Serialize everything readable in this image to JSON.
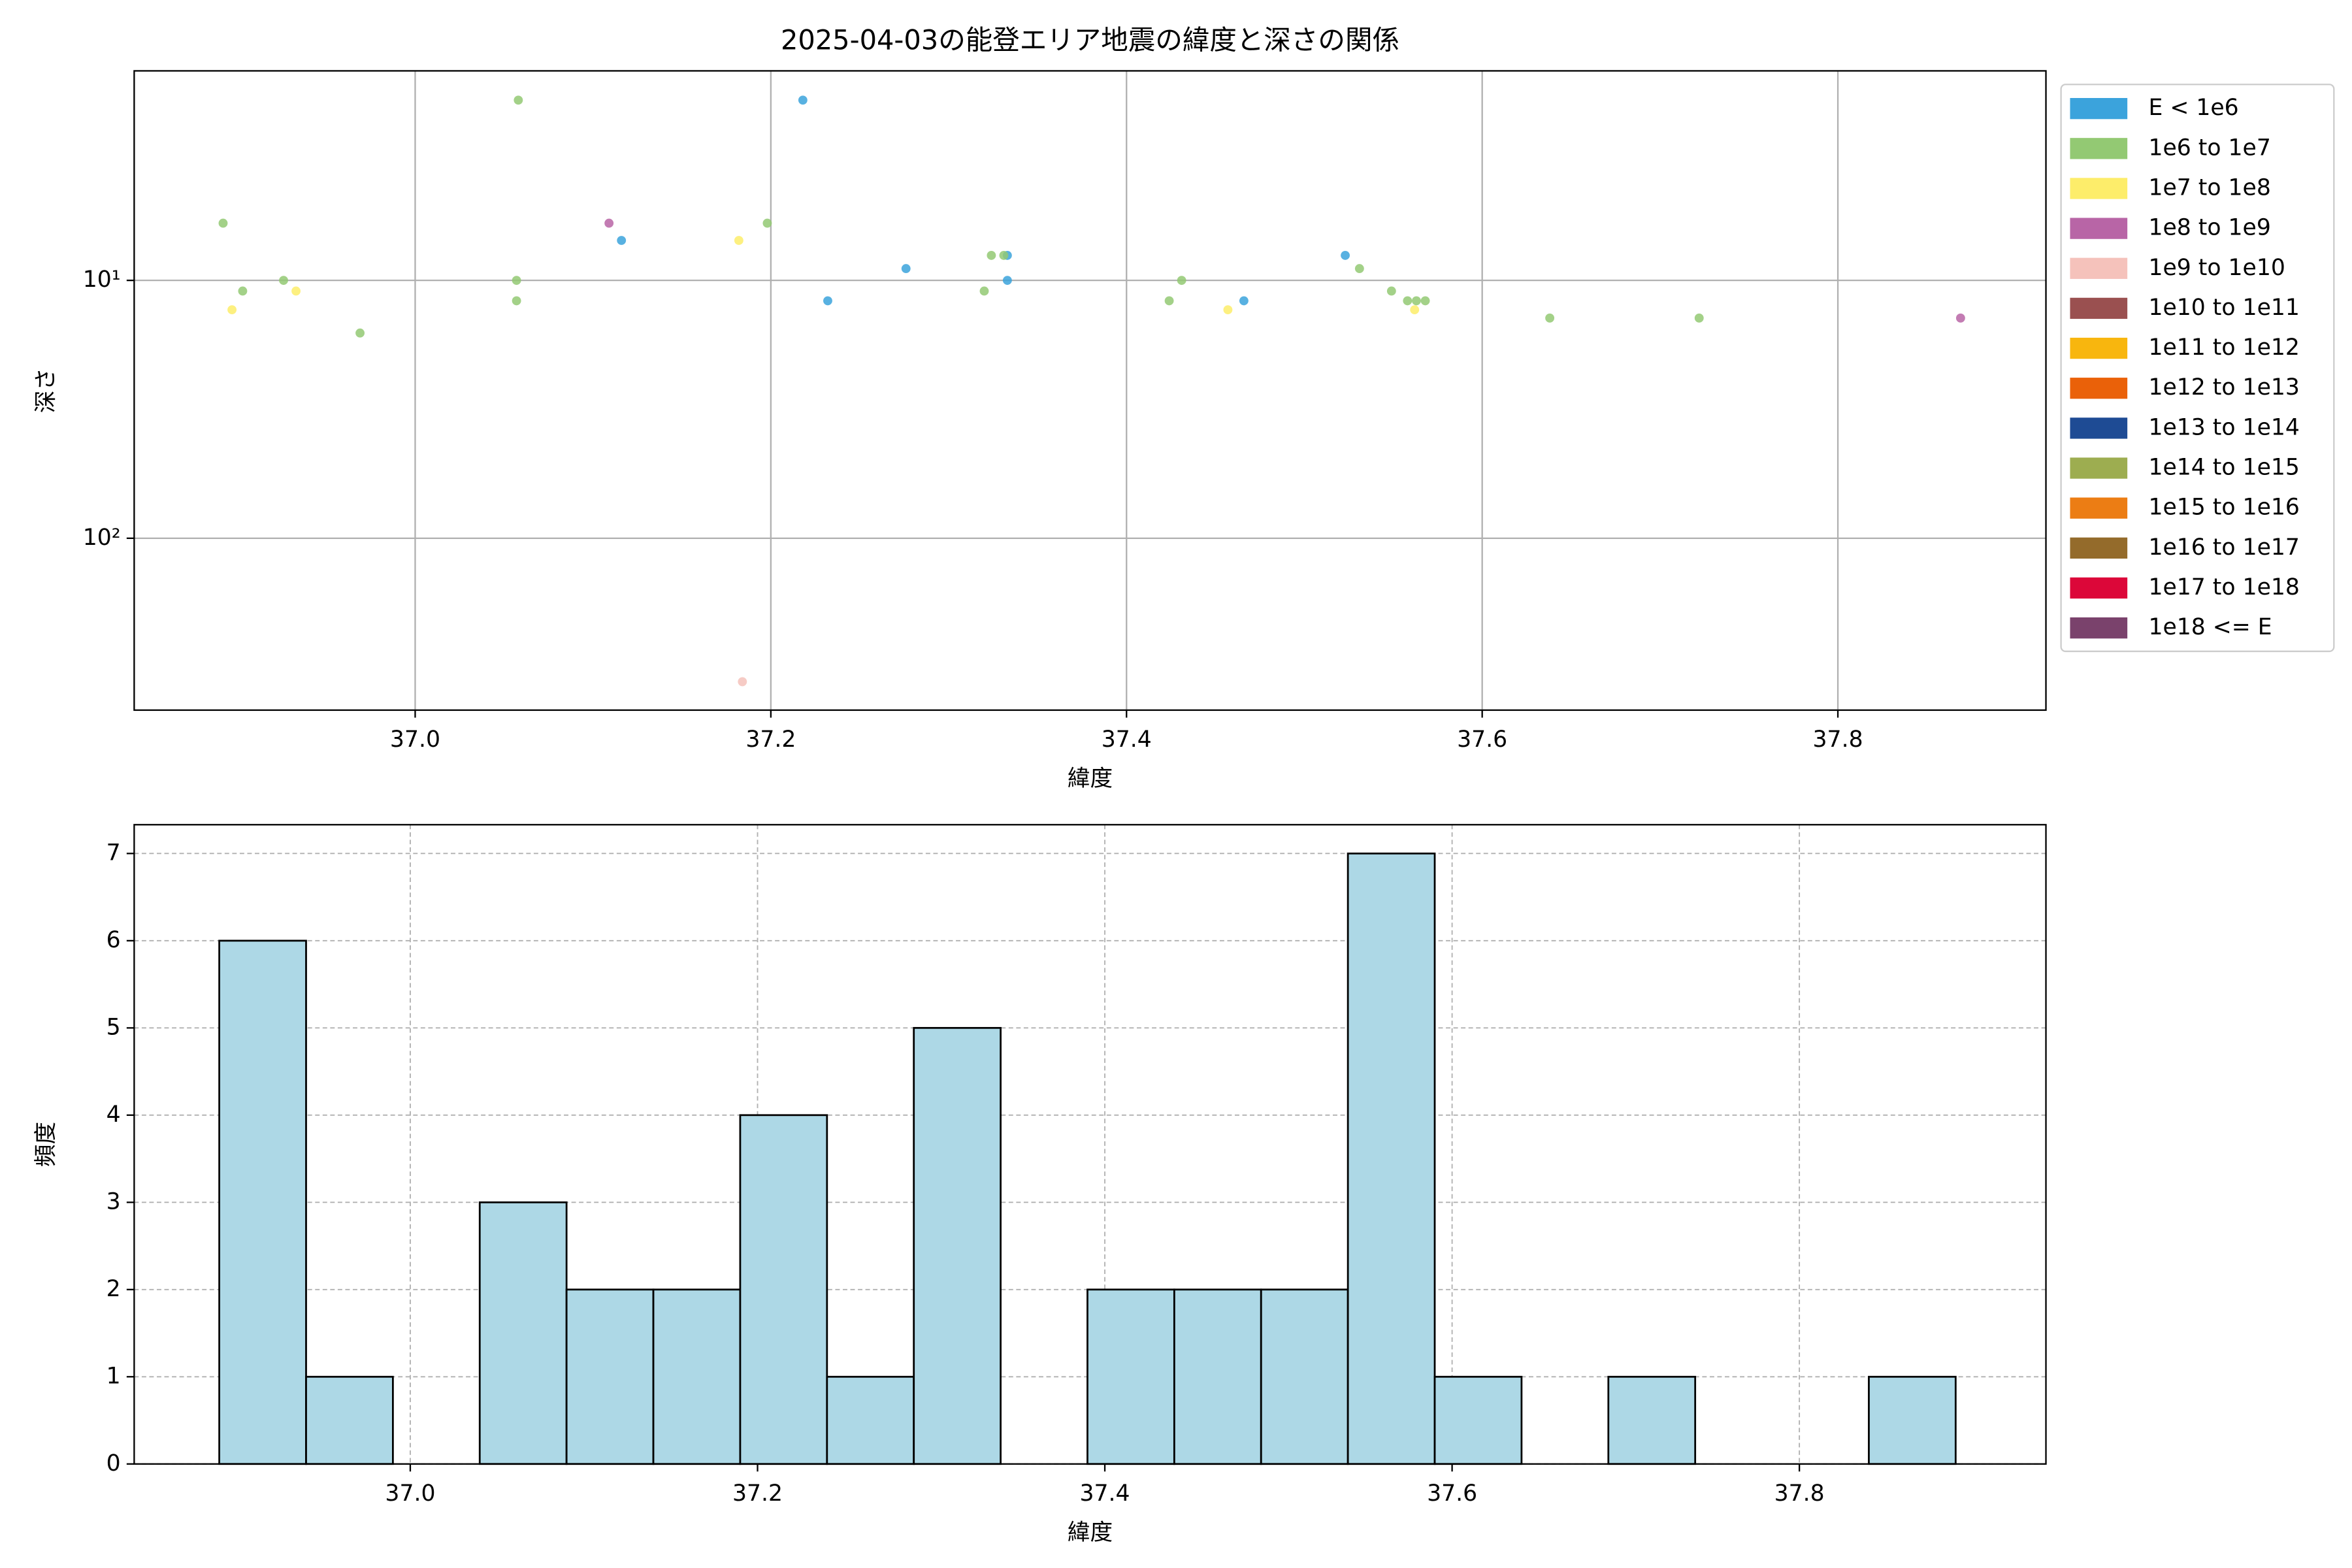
{
  "chart_data": [
    {
      "type": "scatter",
      "title": "2025-04-03の能登エリア地震の緯度と深さの関係",
      "xlabel": "緯度",
      "ylabel": "深さ",
      "xlim": [
        36.842,
        37.917
      ],
      "xticks": [
        {
          "value": 37,
          "label": "37.0"
        },
        {
          "value": 37.2,
          "label": "37.2"
        },
        {
          "value": 37.4,
          "label": "37.4"
        },
        {
          "value": 37.6,
          "label": "37.6"
        },
        {
          "value": 37.8,
          "label": "37.8"
        }
      ],
      "ylim": [
        1.54,
        464
      ],
      "y_log": true,
      "y_inverted": true,
      "yticks": [
        {
          "value": 10,
          "label": "10¹"
        },
        {
          "value": 100,
          "label": "10²"
        }
      ],
      "grid": true,
      "legend": "outside upper right",
      "series": [
        {
          "name": "E < 1e6",
          "color": "#3ba3dc",
          "x": [
            37.218,
            37.116,
            37.276,
            37.232,
            37.333,
            37.333,
            37.466,
            37.523
          ],
          "y": [
            2.0,
            7.0,
            9.0,
            12,
            8.0,
            10,
            12,
            8.0
          ]
        },
        {
          "name": "1e6 to 1e7",
          "color": "#93c973",
          "x": [
            36.892,
            36.903,
            36.926,
            36.969,
            37.058,
            37.057,
            37.057,
            37.198,
            37.324,
            37.32,
            37.331,
            37.431,
            37.424,
            37.531,
            37.549,
            37.558,
            37.563,
            37.568,
            37.638,
            37.722
          ],
          "y": [
            6.0,
            11,
            10,
            16,
            2.0,
            10,
            12,
            6.0,
            8.0,
            11,
            8.0,
            10,
            12,
            9.0,
            11,
            12,
            12,
            12,
            14,
            14
          ]
        },
        {
          "name": "1e7 to 1e8",
          "color": "#fded6a",
          "x": [
            36.897,
            36.933,
            37.182,
            37.457,
            37.562
          ],
          "y": [
            13,
            11,
            7.0,
            13,
            13
          ]
        },
        {
          "name": "1e8 to 1e9",
          "color": "#b865a6",
          "x": [
            37.109,
            37.869
          ],
          "y": [
            6.0,
            14
          ]
        },
        {
          "name": "1e9 to 1e10",
          "color": "#f5c2bb",
          "x": [
            37.184
          ],
          "y": [
            360
          ]
        },
        {
          "name": "1e10 to 1e11",
          "color": "#9a5050",
          "x": [],
          "y": []
        },
        {
          "name": "1e11 to 1e12",
          "color": "#f8b60e",
          "x": [],
          "y": []
        },
        {
          "name": "1e12 to 1e13",
          "color": "#ea6109",
          "x": [],
          "y": []
        },
        {
          "name": "1e13 to 1e14",
          "color": "#1e4b94",
          "x": [],
          "y": []
        },
        {
          "name": "1e14 to 1e15",
          "color": "#9dad50",
          "x": [],
          "y": []
        },
        {
          "name": "1e15 to 1e16",
          "color": "#ec7d14",
          "x": [],
          "y": []
        },
        {
          "name": "1e16 to 1e17",
          "color": "#946b2b",
          "x": [],
          "y": []
        },
        {
          "name": "1e17 to 1e18",
          "color": "#dc0739",
          "x": [],
          "y": []
        },
        {
          "name": "1e18 <= E",
          "color": "#7a426c",
          "x": [],
          "y": []
        }
      ]
    },
    {
      "type": "histogram",
      "xlabel": "緯度",
      "ylabel": "頻度",
      "color": "#add8e6",
      "bins": [
        36.89,
        36.94,
        36.99,
        37.04,
        37.09,
        37.14,
        37.19,
        37.24,
        37.29,
        37.34,
        37.39,
        37.44,
        37.49,
        37.54,
        37.59,
        37.64,
        37.69,
        37.74,
        37.79,
        37.84,
        37.89
      ],
      "values": [
        6,
        1,
        0,
        3,
        2,
        2,
        4,
        1,
        5,
        0,
        2,
        2,
        2,
        7,
        1,
        0,
        1,
        0,
        0,
        1
      ],
      "xlim": [
        36.841,
        37.942
      ],
      "xticks": [
        {
          "value": 37,
          "label": "37.0"
        },
        {
          "value": 37.2,
          "label": "37.2"
        },
        {
          "value": 37.4,
          "label": "37.4"
        },
        {
          "value": 37.6,
          "label": "37.6"
        },
        {
          "value": 37.8,
          "label": "37.8"
        }
      ],
      "ylim": [
        0,
        7.33
      ],
      "yticks": [
        0,
        1,
        2,
        3,
        4,
        5,
        6,
        7
      ],
      "grid": true
    }
  ]
}
